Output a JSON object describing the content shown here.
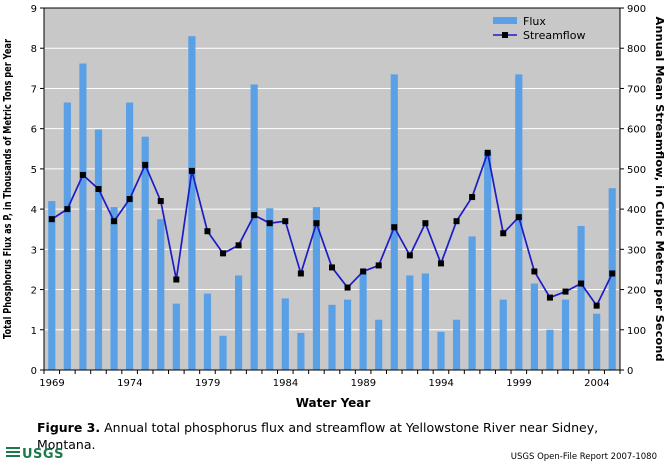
{
  "chart_data": {
    "type": "bar+line",
    "categories": [
      "1969",
      "1970",
      "1971",
      "1972",
      "1973",
      "1974",
      "1975",
      "1976",
      "1977",
      "1978",
      "1979",
      "1980",
      "1981",
      "1982",
      "1983",
      "1984",
      "1985",
      "1986",
      "1987",
      "1988",
      "1989",
      "1990",
      "1991",
      "1992",
      "1993",
      "1994",
      "1995",
      "1996",
      "1997",
      "1998",
      "1999",
      "2000",
      "2001",
      "2002",
      "2003",
      "2004",
      "2005"
    ],
    "x_tick_labels": [
      "1969",
      "1974",
      "1979",
      "1984",
      "1989",
      "1994",
      "1999",
      "2004"
    ],
    "series": [
      {
        "name": "Flux",
        "kind": "bar",
        "axis": "left",
        "color": "#5aa0e6",
        "values": [
          4.2,
          6.65,
          7.62,
          5.98,
          4.05,
          6.65,
          5.8,
          3.75,
          1.65,
          8.3,
          1.9,
          0.85,
          2.35,
          7.1,
          4.02,
          1.78,
          0.92,
          4.05,
          1.62,
          1.75,
          2.45,
          1.25,
          7.35,
          2.35,
          2.4,
          0.95,
          1.25,
          3.32,
          5.42,
          1.75,
          7.35,
          2.15,
          1.0,
          1.75,
          3.58,
          1.4,
          4.52
        ]
      },
      {
        "name": "Streamflow",
        "kind": "line",
        "axis": "right",
        "color": "#1c1cc8",
        "values": [
          375,
          400,
          485,
          450,
          370,
          425,
          510,
          420,
          225,
          495,
          345,
          290,
          310,
          385,
          365,
          370,
          240,
          365,
          255,
          205,
          245,
          260,
          355,
          285,
          365,
          265,
          370,
          430,
          540,
          340,
          380,
          245,
          180,
          195,
          215,
          160,
          240
        ]
      }
    ],
    "ylabel": "Total Phosphorus Flux as P, in Thousands of Metric Tons per Year",
    "ylim": [
      0,
      9
    ],
    "y_ticks": [
      "0",
      "1",
      "2",
      "3",
      "4",
      "5",
      "6",
      "7",
      "8",
      "9"
    ],
    "y2label": "Annual Mean Streamflow, in Cubic Meters per Second",
    "y2lim": [
      0,
      900
    ],
    "y2_ticks": [
      "0",
      "100",
      "200",
      "300",
      "400",
      "500",
      "600",
      "700",
      "800",
      "900"
    ],
    "xlabel": "Water Year",
    "legend": [
      "Flux",
      "Streamflow"
    ],
    "legend_position": "top-right",
    "grid": true,
    "plot_background": "#c8c8c8",
    "grid_color": "#ffffff"
  },
  "caption": {
    "label": "Figure 3.",
    "text": " Annual total phosphorus flux and streamflow at Yellowstone River near Sidney, Montana."
  },
  "footer": {
    "logo_text": "USGS",
    "report": "USGS Open-File Report 2007-1080"
  }
}
